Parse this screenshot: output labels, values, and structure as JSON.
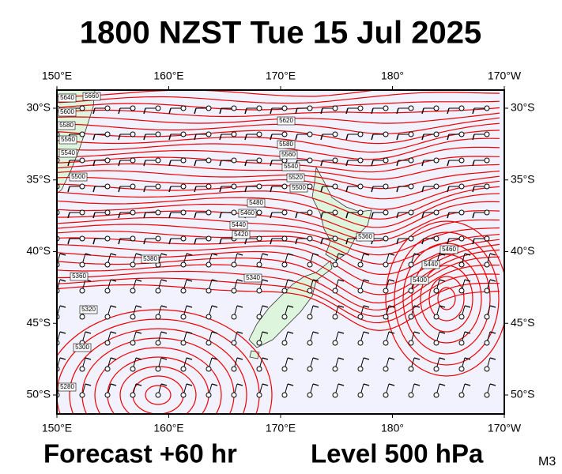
{
  "header": {
    "title": "1800 NZST Tue 15 Jul 2025"
  },
  "map": {
    "lon_ticks": [
      {
        "value": 150,
        "label": "150°E"
      },
      {
        "value": 160,
        "label": "160°E"
      },
      {
        "value": 170,
        "label": "170°E"
      },
      {
        "value": 180,
        "label": "180°"
      },
      {
        "value": 190,
        "label": "170°W"
      }
    ],
    "lat_ticks": [
      {
        "value": -30,
        "label": "30°S"
      },
      {
        "value": -35,
        "label": "35°S"
      },
      {
        "value": -40,
        "label": "40°S"
      },
      {
        "value": -45,
        "label": "45°S"
      },
      {
        "value": -50,
        "label": "50°S"
      }
    ],
    "contour_labels": [
      "5640",
      "5660",
      "5600",
      "5580",
      "5560",
      "5540",
      "5500",
      "5620",
      "5580",
      "5560",
      "5540",
      "5520",
      "5500",
      "5480",
      "5460",
      "5440",
      "5420",
      "5380",
      "5360",
      "5340",
      "5320",
      "5300",
      "5280",
      "5400",
      "5440",
      "5460",
      "5360"
    ]
  },
  "footer": {
    "forecast": "Forecast +60 hr",
    "level": "Level 500 hPa",
    "model": "M3"
  }
}
